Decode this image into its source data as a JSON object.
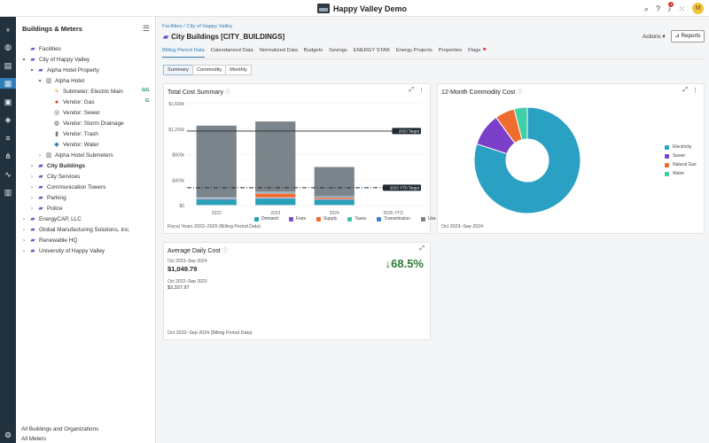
{
  "app": {
    "title": "Happy Valley Demo",
    "icons": [
      "search-icon",
      "help-icon",
      "notifications-icon",
      "apps-grid-icon"
    ],
    "notification_count": "4",
    "user_initial": "M"
  },
  "rail": {
    "logo_text": "EC",
    "items": [
      "add-icon",
      "globe-icon",
      "bills-icon",
      "dashboard-icon",
      "calculator-icon",
      "projects-icon",
      "reports-icon",
      "hierarchy-icon",
      "activity-icon",
      "buildings-icon"
    ],
    "settings_icon": "gear-icon"
  },
  "tree": {
    "header": "Buildings & Meters",
    "nodes": [
      {
        "label": "Facilities",
        "depth": 0,
        "caret": "",
        "icon": "building",
        "bold": false
      },
      {
        "label": "City of Happy Valley",
        "depth": 0,
        "caret": "▾",
        "icon": "building",
        "bold": false
      },
      {
        "label": "Alpha Hotel Property",
        "depth": 1,
        "caret": "▾",
        "icon": "building",
        "bold": false
      },
      {
        "label": "Alpha Hotel",
        "depth": 2,
        "caret": "▾",
        "icon": "hotel",
        "bold": false
      },
      {
        "label": "Submeter: Electric Main",
        "depth": 3,
        "caret": "",
        "icon": "electric",
        "bold": false
      },
      {
        "label": "Vendor: Gas",
        "depth": 3,
        "caret": "",
        "icon": "gas",
        "bold": false
      },
      {
        "label": "Vendor: Sewer",
        "depth": 3,
        "caret": "",
        "icon": "sewer",
        "bold": false
      },
      {
        "label": "Vendor: Storm Drainage",
        "depth": 3,
        "caret": "",
        "icon": "drain",
        "bold": false
      },
      {
        "label": "Vendor: Trash",
        "depth": 3,
        "caret": "",
        "icon": "trash",
        "bold": false
      },
      {
        "label": "Vendor: Water",
        "depth": 3,
        "caret": "",
        "icon": "water",
        "bold": false
      },
      {
        "label": "Alpha Hotel Submeters",
        "depth": 2,
        "caret": "›",
        "icon": "hotel",
        "bold": false
      },
      {
        "label": "City Buildings",
        "depth": 1,
        "caret": "›",
        "icon": "building",
        "bold": true
      },
      {
        "label": "City Services",
        "depth": 1,
        "caret": "›",
        "icon": "building",
        "bold": false
      },
      {
        "label": "Communication Towers",
        "depth": 1,
        "caret": "›",
        "icon": "building",
        "bold": false
      },
      {
        "label": "Parking",
        "depth": 1,
        "caret": "›",
        "icon": "building",
        "bold": false
      },
      {
        "label": "Police",
        "depth": 1,
        "caret": "›",
        "icon": "building",
        "bold": false
      },
      {
        "label": "EnergyCAP, LLC",
        "depth": 0,
        "caret": "›",
        "icon": "building",
        "bold": false
      },
      {
        "label": "Global Manufacturing Solutions, Inc.",
        "depth": 0,
        "caret": "›",
        "icon": "building",
        "bold": false
      },
      {
        "label": "Renewable HQ",
        "depth": 0,
        "caret": "›",
        "icon": "building",
        "bold": false
      },
      {
        "label": "University of Happy Valley",
        "depth": 0,
        "caret": "›",
        "icon": "building",
        "bold": false
      }
    ],
    "footer1": "All Buildings and Organizations",
    "footer2": "All Meters"
  },
  "page": {
    "breadcrumb": "Facilities / City of Happy Valley",
    "title": "City Buildings [CITY_BUILDINGS]",
    "actions_label": "Actions ▾",
    "reports_label": "Reports",
    "tabs": [
      "Billing Period Data",
      "Calendarized Data",
      "Normalized Data",
      "Budgets",
      "Savings",
      "ENERGY STAR",
      "Energy Projects",
      "Properties",
      "Flags"
    ],
    "subtabs": [
      "Summary",
      "Commodity",
      "Monthly"
    ]
  },
  "cards": {
    "total_cost": {
      "title": "Total Cost Summary",
      "footer": "Fiscal Years 2022–2025 (Billing Period Data)"
    },
    "commodity": {
      "title": "12-Month Commodity Cost",
      "footer": "Oct 2023–Sep 2024"
    },
    "daily": {
      "title": "Average Daily Cost",
      "period1": "Oct 2023–Sep 2024",
      "value1": "$1,049.79",
      "period2": "Oct 2022–Sep 2023",
      "value2": "$3,327.97",
      "change": "↓68.5%",
      "footer": "Oct 2022–Sep 2024 (Billing Period Data)"
    }
  },
  "chart_data": [
    {
      "type": "bar",
      "title": "Total Cost Summary",
      "categories": [
        "2022",
        "2023",
        "2024",
        "2025 YTD"
      ],
      "yticks": [
        "$0",
        "$400k",
        "$800k",
        "$1,200k",
        "$1,600k"
      ],
      "ylim": [
        0,
        1600
      ],
      "series": [
        {
          "name": "Demand",
          "color": "#2aa0b8",
          "values": [
            95,
            110,
            90,
            0
          ]
        },
        {
          "name": "Fees",
          "color": "#7b4fd0",
          "values": [
            5,
            10,
            5,
            0
          ]
        },
        {
          "name": "Supply",
          "color": "#ef6c2f",
          "values": [
            10,
            70,
            30,
            0
          ]
        },
        {
          "name": "Taxes",
          "color": "#3cc2a8",
          "values": [
            5,
            10,
            5,
            0
          ]
        },
        {
          "name": "Transmission",
          "color": "#3d7fd0",
          "values": [
            5,
            5,
            5,
            0
          ]
        },
        {
          "name": "Use",
          "color": "#7b848a",
          "values": [
            1135,
            1115,
            470,
            0
          ]
        }
      ],
      "targets": [
        {
          "label": "2023 Target",
          "value": 1170,
          "style": "solid"
        },
        {
          "label": "2023 YTD Target",
          "value": 280,
          "style": "dashed"
        }
      ],
      "legend": "bottom"
    },
    {
      "type": "pie",
      "title": "12-Month Commodity Cost",
      "donut": true,
      "slices": [
        {
          "name": "Electricity",
          "value": 80,
          "color": "#2aa0c2"
        },
        {
          "name": "Sewer",
          "value": 10,
          "color": "#7b3fc9"
        },
        {
          "name": "Natural Gas",
          "value": 6,
          "color": "#ef6c2f"
        },
        {
          "name": "Water",
          "value": 4,
          "color": "#3ecfa4"
        }
      ],
      "legend": "right"
    }
  ]
}
